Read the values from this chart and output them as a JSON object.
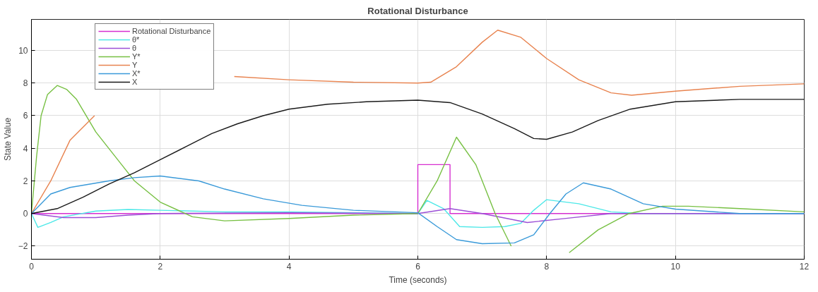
{
  "chart_data": {
    "type": "line",
    "title": "Rotational Disturbance",
    "xlabel": "Time (seconds)",
    "ylabel": "State Value",
    "xlim": [
      0,
      12
    ],
    "ylim": [
      -2.8,
      11.9
    ],
    "xticks": [
      0,
      2,
      4,
      6,
      8,
      10,
      12
    ],
    "yticks": [
      -2,
      0,
      2,
      4,
      6,
      8,
      10
    ],
    "grid": true,
    "legend": "top left",
    "series": [
      {
        "name": "Rotational Disturbance",
        "color": "#d62fd0",
        "x": [
          0,
          6,
          6,
          6.5,
          6.5,
          12
        ],
        "values": [
          0,
          0,
          3,
          3,
          0,
          0
        ]
      },
      {
        "name": "θ*",
        "color": "#4de8e8",
        "x": [
          0,
          0.1,
          0.3,
          0.5,
          1,
          1.5,
          2,
          3,
          4,
          6,
          6.14,
          6.4,
          6.65,
          7,
          7.35,
          7.6,
          7.8,
          8.0,
          8.5,
          9,
          9.5,
          12
        ],
        "values": [
          0,
          -0.85,
          -0.55,
          -0.2,
          0.15,
          0.25,
          0.2,
          0.1,
          0.1,
          0,
          0.8,
          0.3,
          -0.8,
          -0.85,
          -0.8,
          -0.6,
          0.2,
          0.85,
          0.6,
          0.1,
          0,
          0
        ]
      },
      {
        "name": "θ",
        "color": "#9b4fd6",
        "x": [
          0,
          0.5,
          1,
          1.5,
          2,
          4,
          6,
          6.5,
          7,
          7.7,
          8.3,
          9,
          12
        ],
        "values": [
          0,
          -0.25,
          -0.25,
          -0.1,
          0,
          0.05,
          0,
          0.3,
          0,
          -0.55,
          -0.3,
          0,
          0
        ]
      },
      {
        "name": "Y*",
        "color": "#77c043",
        "x": [
          0,
          0.08,
          0.15,
          0.25,
          0.4,
          0.55,
          0.7,
          1,
          1.4,
          1.6,
          2,
          2.5,
          3,
          4,
          5,
          6,
          6.3,
          6.6,
          6.9,
          7.2,
          7.45,
          7.9,
          8.35,
          8.8,
          9.28,
          9.8,
          10.2,
          11,
          12
        ],
        "values": [
          0,
          3.5,
          6,
          7.3,
          7.85,
          7.6,
          7,
          5,
          3,
          2,
          0.7,
          -0.2,
          -0.45,
          -0.3,
          -0.1,
          0,
          2,
          4.68,
          3,
          0,
          -2.0,
          null,
          -2.4,
          -1,
          0,
          0.45,
          0.45,
          0.3,
          0.1
        ]
      },
      {
        "name": "Y",
        "color": "#e8834f",
        "x": [
          0,
          0.3,
          0.6,
          0.98,
          2,
          3.15,
          4,
          5,
          6,
          6.2,
          6.6,
          7,
          7.24,
          7.6,
          8,
          8.5,
          9,
          9.32,
          10,
          11,
          12
        ],
        "values": [
          0,
          2,
          4.5,
          6.0,
          null,
          8.4,
          8.2,
          8.05,
          8.0,
          8.05,
          9,
          10.5,
          11.24,
          10.8,
          9.5,
          8.2,
          7.4,
          7.25,
          7.5,
          7.8,
          7.95
        ]
      },
      {
        "name": "X*",
        "color": "#3a9ad9",
        "x": [
          0,
          0.3,
          0.6,
          1.2,
          1.6,
          2,
          2.6,
          3,
          3.6,
          4.2,
          5,
          6,
          6.3,
          6.6,
          7,
          7.5,
          7.8,
          8.05,
          8.3,
          8.57,
          9,
          9.5,
          10,
          11,
          12
        ],
        "values": [
          0,
          1.2,
          1.6,
          2.0,
          2.2,
          2.3,
          2.0,
          1.5,
          0.9,
          0.5,
          0.2,
          0.05,
          -0.8,
          -1.6,
          -1.85,
          -1.8,
          -1.3,
          0,
          1.2,
          1.88,
          1.5,
          0.6,
          0.27,
          0,
          0
        ]
      },
      {
        "name": "X",
        "color": "#1a1a1a",
        "x": [
          0,
          0.4,
          0.8,
          1.2,
          1.6,
          2,
          2.4,
          2.8,
          3.2,
          3.6,
          4,
          4.6,
          5.2,
          6,
          6.5,
          7,
          7.5,
          7.8,
          8,
          8.4,
          8.8,
          9.3,
          10,
          11,
          12
        ],
        "values": [
          0,
          0.3,
          1,
          1.8,
          2.5,
          3.3,
          4.1,
          4.9,
          5.5,
          6.0,
          6.4,
          6.7,
          6.85,
          6.95,
          6.8,
          6.1,
          5.2,
          4.6,
          4.55,
          5,
          5.7,
          6.4,
          6.85,
          7.0,
          7.0
        ]
      }
    ]
  }
}
